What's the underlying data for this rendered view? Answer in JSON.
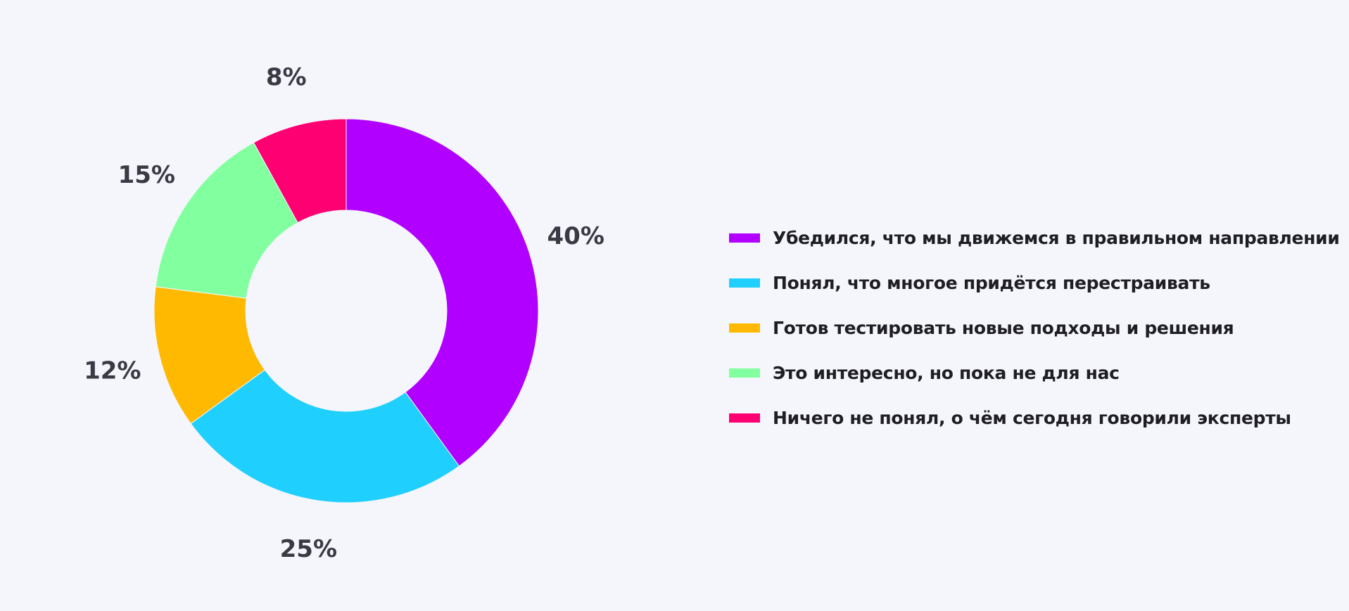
{
  "chart_data": {
    "type": "pie",
    "variant": "donut",
    "title": "",
    "categories": [
      "Убедился, что мы движемся в правильном направлении",
      "Понял, что многое придётся перестраивать",
      "Готов тестировать новые подходы и решения",
      "Это интересно, но пока не для нас",
      "Ничего не понял, о чём сегодня говорили эксперты"
    ],
    "values": [
      40,
      25,
      12,
      15,
      8
    ],
    "value_labels": [
      "40%",
      "25%",
      "12%",
      "15%",
      "8%"
    ],
    "colors": [
      "#b100ff",
      "#1fcffd",
      "#ffb900",
      "#82ff9e",
      "#ff0073"
    ],
    "legend_placement": "right"
  }
}
